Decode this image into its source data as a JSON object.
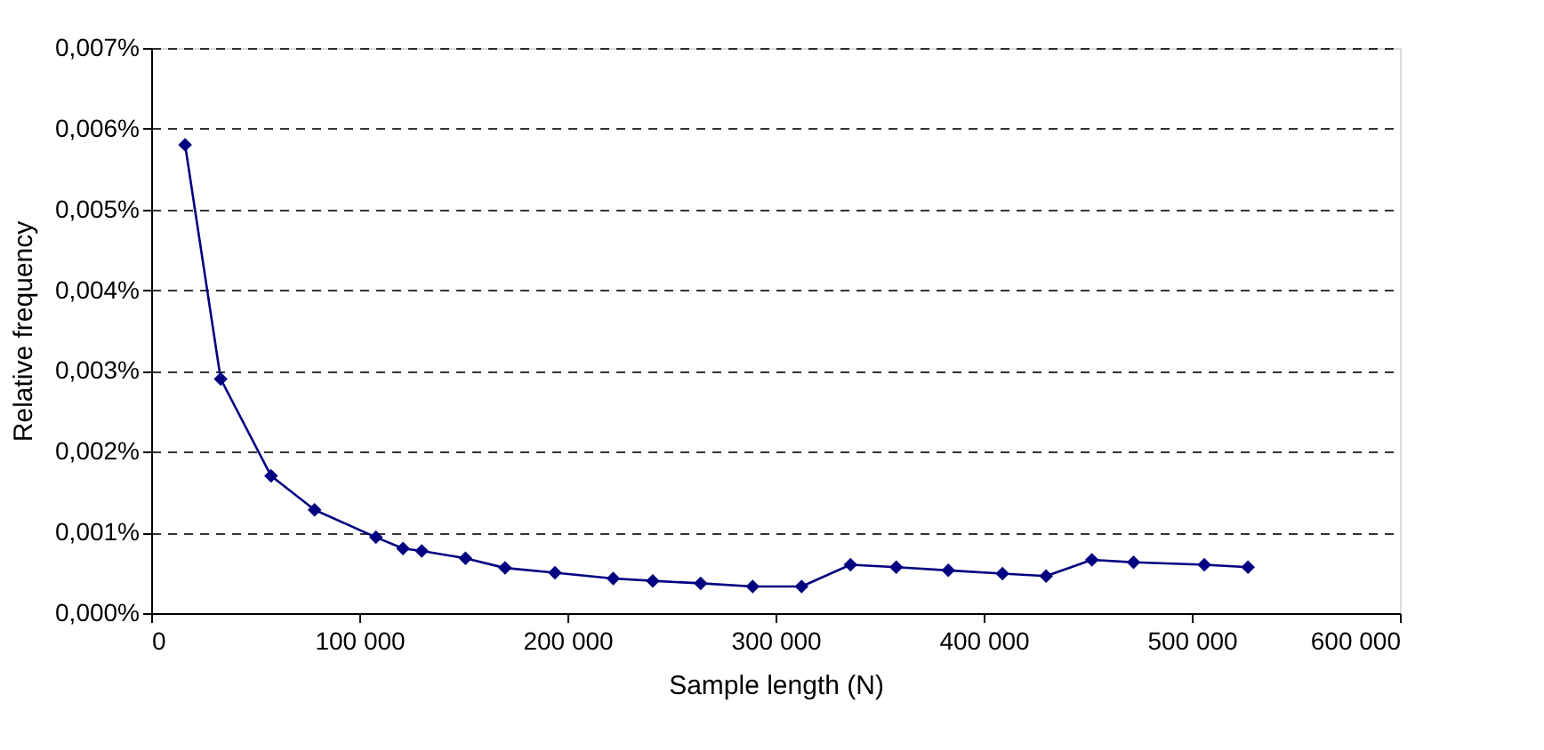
{
  "chart_data": {
    "type": "line",
    "xlabel": "Sample length (N)",
    "ylabel": "Relative frequency",
    "x": [
      16300,
      33400,
      57600,
      78500,
      108000,
      121000,
      130000,
      151000,
      170000,
      194000,
      222000,
      241000,
      264000,
      289000,
      312500,
      336000,
      358000,
      383000,
      409000,
      430000,
      452000,
      472000,
      506000,
      527000
    ],
    "series": [
      {
        "color": "#000080",
        "values": [
          0.0058,
          0.0029,
          0.0017,
          0.00128,
          0.00094,
          0.0008,
          0.00077,
          0.00068,
          0.00056,
          0.0005,
          0.00043,
          0.0004,
          0.00037,
          0.00033,
          0.00033,
          0.0006,
          0.00057,
          0.00053,
          0.00049,
          0.00046,
          0.00066,
          0.00063,
          0.0006,
          0.00057
        ]
      }
    ],
    "xlim": [
      0,
      600000
    ],
    "xticks": [
      {
        "value": 0,
        "label": "0"
      },
      {
        "value": 100000,
        "label": "100 000"
      },
      {
        "value": 200000,
        "label": "200 000"
      },
      {
        "value": 300000,
        "label": "300 000"
      },
      {
        "value": 400000,
        "label": "400 000"
      },
      {
        "value": 500000,
        "label": "500 000"
      },
      {
        "value": 600000,
        "label": "600 000"
      }
    ],
    "ylim": [
      0,
      0.007
    ],
    "yticks": [
      {
        "value": 0,
        "label": "0,000%"
      },
      {
        "value": 0.001,
        "label": "0,001%"
      },
      {
        "value": 0.002,
        "label": "0,002%"
      },
      {
        "value": 0.003,
        "label": "0,003%"
      },
      {
        "value": 0.004,
        "label": "0,004%"
      },
      {
        "value": 0.005,
        "label": "0,005%"
      },
      {
        "value": 0.006,
        "label": "0,006%"
      },
      {
        "value": 0.007,
        "label": "0,007%"
      }
    ],
    "grid": "y",
    "marker": "diamond",
    "line_style": "solid"
  }
}
